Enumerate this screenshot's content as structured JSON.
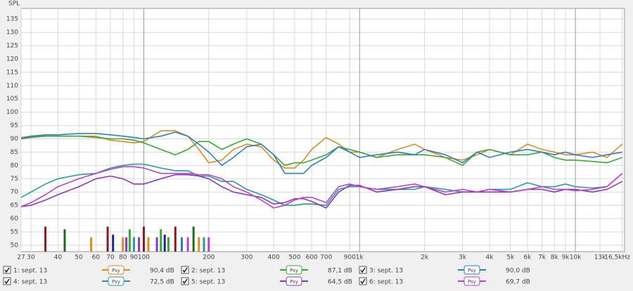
{
  "chart_data": {
    "type": "line",
    "y_label": "SPL",
    "log_x": true,
    "grid": true,
    "xlim": [
      27,
      16900
    ],
    "ylim": [
      47.6,
      139
    ],
    "xticks": [
      27,
      30,
      40,
      50,
      60,
      70,
      80,
      90,
      100,
      200,
      300,
      400,
      500,
      600,
      700,
      900,
      {
        "value": 1000,
        "label": "1k"
      },
      {
        "value": 2000,
        "label": "2k"
      },
      {
        "value": 3000,
        "label": "3k"
      },
      {
        "value": 4000,
        "label": "4k"
      },
      {
        "value": 5000,
        "label": "5k"
      },
      {
        "value": 6000,
        "label": "6k"
      },
      {
        "value": 7000,
        "label": "7k"
      },
      {
        "value": 8000,
        "label": "8k"
      },
      {
        "value": 9000,
        "label": "9k"
      },
      {
        "value": 10000,
        "label": "10k"
      },
      {
        "value": 13000,
        "label": "13k"
      },
      {
        "value": 16500,
        "label": "16,5kHz"
      }
    ],
    "yticks": [
      50,
      55,
      60,
      65,
      70,
      75,
      80,
      85,
      90,
      95,
      100,
      105,
      110,
      115,
      120,
      125,
      130,
      135
    ],
    "x": [
      27,
      30,
      35,
      40,
      50,
      60,
      70,
      80,
      90,
      100,
      120,
      140,
      160,
      180,
      200,
      230,
      260,
      300,
      350,
      400,
      450,
      500,
      550,
      600,
      700,
      800,
      900,
      1000,
      1200,
      1500,
      1800,
      2000,
      2500,
      3000,
      3500,
      4000,
      5000,
      6000,
      7000,
      8000,
      9000,
      10000,
      12000,
      14000,
      16500
    ],
    "series": [
      {
        "name": "1: sept. 13",
        "color": "#e08a1e",
        "smoothing": "Psy",
        "level": "90,4 dB",
        "values": [
          90.5,
          91,
          91,
          91,
          91,
          91,
          89.5,
          89,
          88.5,
          89,
          93,
          93,
          91,
          86,
          81,
          82,
          86,
          88,
          87,
          82,
          79,
          79,
          82,
          86,
          90.5,
          88,
          85,
          85,
          83,
          86,
          88,
          86,
          83,
          82,
          84,
          86,
          84,
          88,
          86,
          85,
          84,
          84,
          85,
          83,
          88
        ]
      },
      {
        "name": "2: sept. 13",
        "color": "#3aa63a",
        "smoothing": "Psy",
        "level": "87,1 dB",
        "values": [
          90,
          90.5,
          91,
          91,
          91,
          90.5,
          90,
          90,
          89.5,
          88.5,
          86,
          84,
          86,
          89,
          89,
          86,
          88,
          90,
          88,
          84,
          80,
          81,
          81,
          82,
          84,
          87,
          86,
          85,
          83,
          84,
          84,
          84,
          83,
          80,
          85,
          86,
          84,
          84,
          85,
          83,
          82,
          82,
          81.5,
          81,
          83
        ]
      },
      {
        "name": "3: sept. 13",
        "color": "#2f7ec0",
        "smoothing": "Psy",
        "level": "90,0 dB",
        "values": [
          90,
          91,
          91.5,
          91.5,
          92,
          92,
          91.5,
          91,
          90.5,
          90,
          91,
          92.5,
          91,
          88,
          85,
          80,
          83,
          87,
          88,
          84,
          77,
          77,
          77,
          80,
          83,
          87,
          85,
          83,
          84,
          85,
          84,
          86,
          84,
          81,
          85,
          83,
          85,
          86,
          85,
          84,
          85,
          84,
          83,
          84,
          85
        ]
      },
      {
        "name": "4: sept. 13",
        "color": "#2a9a9a",
        "smoothing": "Psy",
        "level": "72,5 dB",
        "values": [
          68,
          70,
          73,
          75,
          76.5,
          77,
          79,
          80,
          80.5,
          80.5,
          79,
          78,
          78,
          76,
          76,
          74,
          74,
          71,
          69,
          67,
          65,
          65,
          65.5,
          65.5,
          65,
          71,
          72,
          72,
          71,
          71,
          71,
          72,
          71,
          70,
          70,
          71,
          71,
          73.5,
          72,
          72,
          73,
          72,
          71.5,
          72,
          77
        ]
      },
      {
        "name": "5: sept. 13",
        "color": "#8a3ab8",
        "smoothing": "Psy",
        "level": "64,5 dB",
        "values": [
          64.5,
          65,
          67,
          69,
          72,
          75,
          76,
          75,
          73,
          73,
          75,
          76.5,
          76.5,
          76,
          75,
          72,
          70,
          69,
          68,
          65.5,
          66,
          67.5,
          67.5,
          66.5,
          64,
          70,
          72.5,
          72.5,
          70,
          71,
          72,
          72,
          69,
          70,
          70,
          70,
          70,
          71,
          71,
          70,
          71,
          71,
          70,
          71,
          74
        ]
      },
      {
        "name": "6: sept. 13",
        "color": "#b545c8",
        "smoothing": "Psy",
        "level": "69,7 dB",
        "values": [
          64.5,
          66,
          69,
          72,
          75,
          77,
          78.5,
          79.5,
          79.5,
          79,
          77,
          77,
          77,
          76.5,
          76.5,
          75,
          72,
          70,
          67,
          64,
          65,
          67,
          68,
          68,
          66,
          72,
          73,
          72,
          71,
          72,
          73,
          72,
          70,
          71,
          70,
          71,
          70,
          71,
          72,
          71,
          71,
          70.5,
          71,
          72,
          77
        ]
      }
    ],
    "markers": {
      "x": [
        35,
        43,
        57,
        68,
        72,
        80,
        83,
        86,
        90,
        95,
        100,
        105,
        115,
        120,
        125,
        130,
        140,
        150,
        160,
        170,
        180,
        190,
        200
      ],
      "values": [
        57,
        56,
        53,
        57,
        54,
        53,
        53,
        56,
        53,
        53,
        57,
        53,
        53,
        56,
        54,
        53,
        57,
        53,
        53,
        57,
        53,
        53,
        53
      ],
      "colors": [
        "#8b1a1a",
        "#1e6b1e",
        "#e08a1e",
        "#8b1a1a",
        "#1a2a8b",
        "#e08a1e",
        "#8a3ab8",
        "#3aa63a",
        "#2a9a9a",
        "#8a3ab8",
        "#8b1a1a",
        "#e08a1e",
        "#8a3ab8",
        "#3aa63a",
        "#1a2a8b",
        "#3aa63a",
        "#8b1a1a",
        "#2f7ec0",
        "#b545c8",
        "#1e6b1e",
        "#e08a1e",
        "#2a9a9a",
        "#b545c8"
      ]
    }
  }
}
